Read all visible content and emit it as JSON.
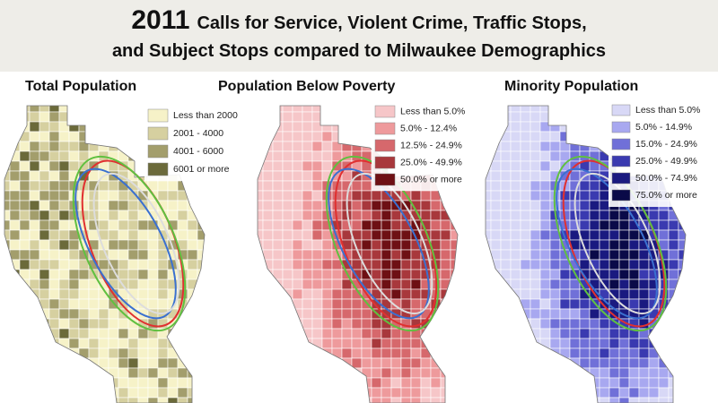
{
  "header": {
    "year": "2011",
    "line1": "Calls for Service, Violent Crime, Traffic Stops,",
    "line2": "and Subject Stops compared to Milwaukee Demographics"
  },
  "maps": [
    {
      "title": "Total Population",
      "legend": [
        {
          "label": "Less than 2000",
          "color": "#f6f2c8"
        },
        {
          "label": "2001 - 4000",
          "color": "#d6d0a0"
        },
        {
          "label": "4001 - 6000",
          "color": "#a39e6c"
        },
        {
          "label": "6001 or more",
          "color": "#6b6a3a"
        }
      ]
    },
    {
      "title": "Population Below Poverty",
      "legend": [
        {
          "label": "Less than 5.0%",
          "color": "#f6c6c8"
        },
        {
          "label": "5.0% - 12.4%",
          "color": "#ee9a9c"
        },
        {
          "label": "12.5% - 24.9%",
          "color": "#d6686c"
        },
        {
          "label": "25.0% - 49.9%",
          "color": "#a8383c"
        },
        {
          "label": "50.0% or more",
          "color": "#6e1014"
        }
      ]
    },
    {
      "title": "Minority Population",
      "legend": [
        {
          "label": "Less than 5.0%",
          "color": "#d8d8f6"
        },
        {
          "label": "5.0% - 14.9%",
          "color": "#a8a8f0"
        },
        {
          "label": "15.0% - 24.9%",
          "color": "#7070d8"
        },
        {
          "label": "25.0% - 49.9%",
          "color": "#3a3ab0"
        },
        {
          "label": "50.0% - 74.9%",
          "color": "#1a1a80"
        },
        {
          "label": "75.0% or more",
          "color": "#0a0a48"
        }
      ]
    }
  ]
}
